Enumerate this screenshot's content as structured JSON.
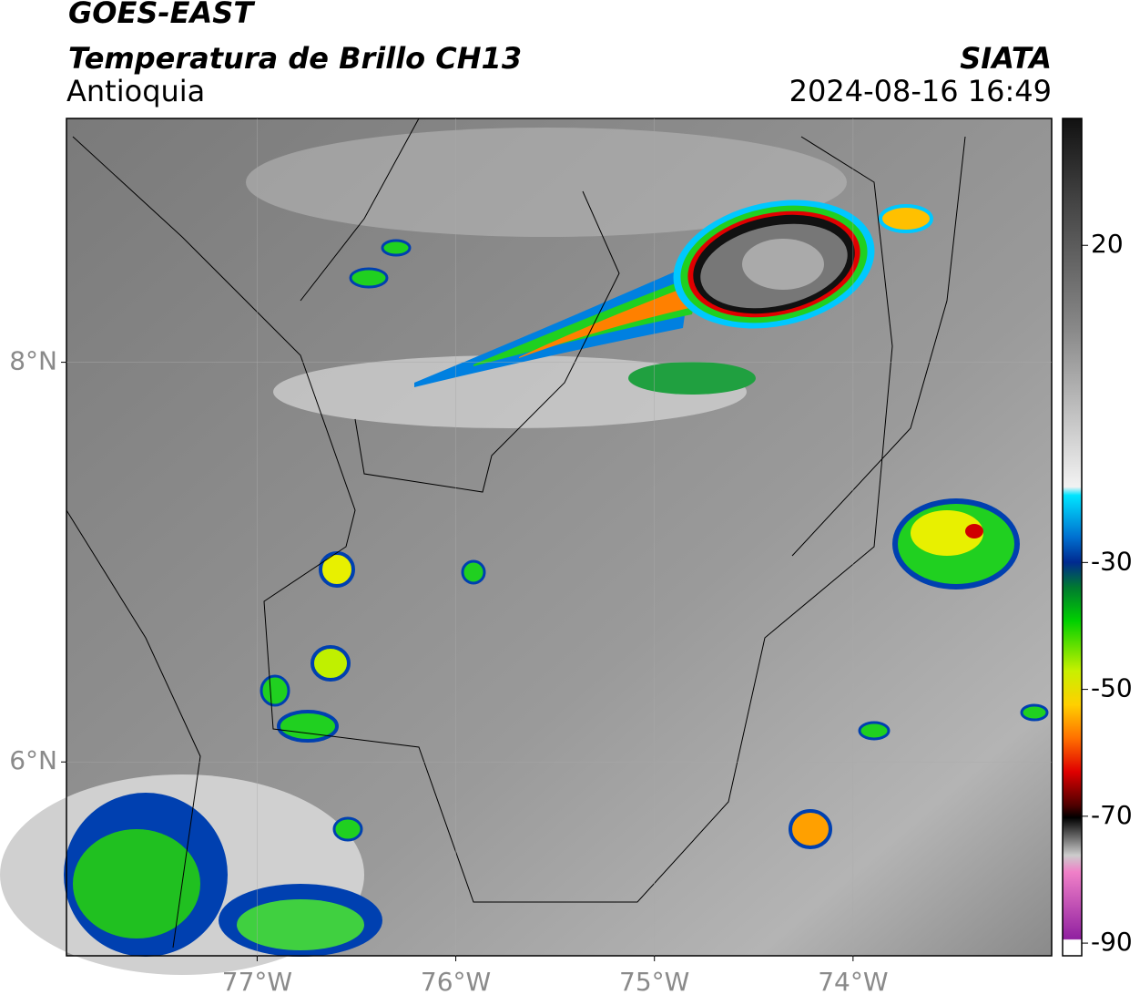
{
  "map": {
    "title": "GOES-EAST",
    "subtitle": "Temperatura de Brillo CH13",
    "region": "Antioquia",
    "source": "SIATA",
    "datetime": "2024-08-16 16:49",
    "xlim": [
      -77.96,
      -73.0
    ],
    "ylim": [
      5.03,
      9.22
    ],
    "xticks": [
      {
        "value": -77,
        "label": "77°W"
      },
      {
        "value": -76,
        "label": "76°W"
      },
      {
        "value": -75,
        "label": "75°W"
      },
      {
        "value": -74,
        "label": "74°W"
      }
    ],
    "yticks": [
      {
        "value": 6,
        "label": "6°N"
      },
      {
        "value": 8,
        "label": "8°N"
      }
    ],
    "grid": true,
    "colorbar": {
      "lim": [
        -92,
        40
      ],
      "ticks": [
        20,
        -30,
        -50,
        -70,
        -90
      ]
    }
  }
}
